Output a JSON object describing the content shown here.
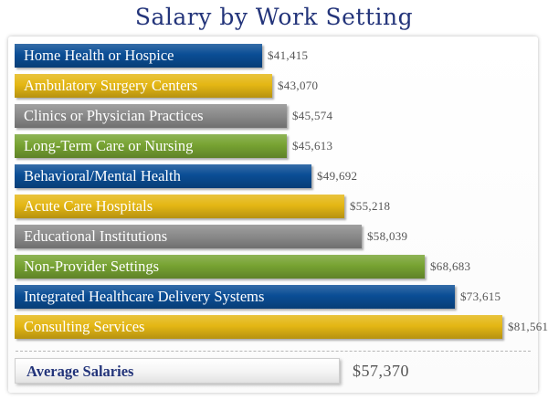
{
  "chart_data": {
    "type": "bar",
    "orientation": "horizontal",
    "title": "Salary by Work Setting",
    "categories": [
      "Home Health or Hospice",
      "Ambulatory Surgery Centers",
      "Clinics or Physician Practices",
      "Long-Term Care or Nursing",
      "Behavioral/Mental Health",
      "Acute Care Hospitals",
      "Educational Institutions",
      "Non-Provider Settings",
      "Integrated Healthcare Delivery Systems",
      "Consulting Services"
    ],
    "values": [
      41415,
      43070,
      45574,
      45613,
      49692,
      55218,
      58039,
      68683,
      73615,
      81561
    ],
    "value_labels": [
      "$41,415",
      "$43,070",
      "$45,574",
      "$45,613",
      "$49,692",
      "$55,218",
      "$58,039",
      "$68,683",
      "$73,615",
      "$81,561"
    ],
    "bar_colors": [
      "#0a4d95",
      "#e4b714",
      "#8b8b8b",
      "#77a332",
      "#0a4d95",
      "#e4b714",
      "#8b8b8b",
      "#77a332",
      "#0a4d95",
      "#e4b714"
    ],
    "average": {
      "label": "Average Salaries",
      "value": 57370,
      "value_label": "$57,370"
    },
    "xlabel": "",
    "ylabel": "",
    "grid": false,
    "legend": "none"
  },
  "colors": {
    "title": "#23347a",
    "blue": "#0a4d95",
    "gold": "#e4b714",
    "gray": "#8b8b8b",
    "green": "#77a332",
    "value_text": "#555555"
  }
}
